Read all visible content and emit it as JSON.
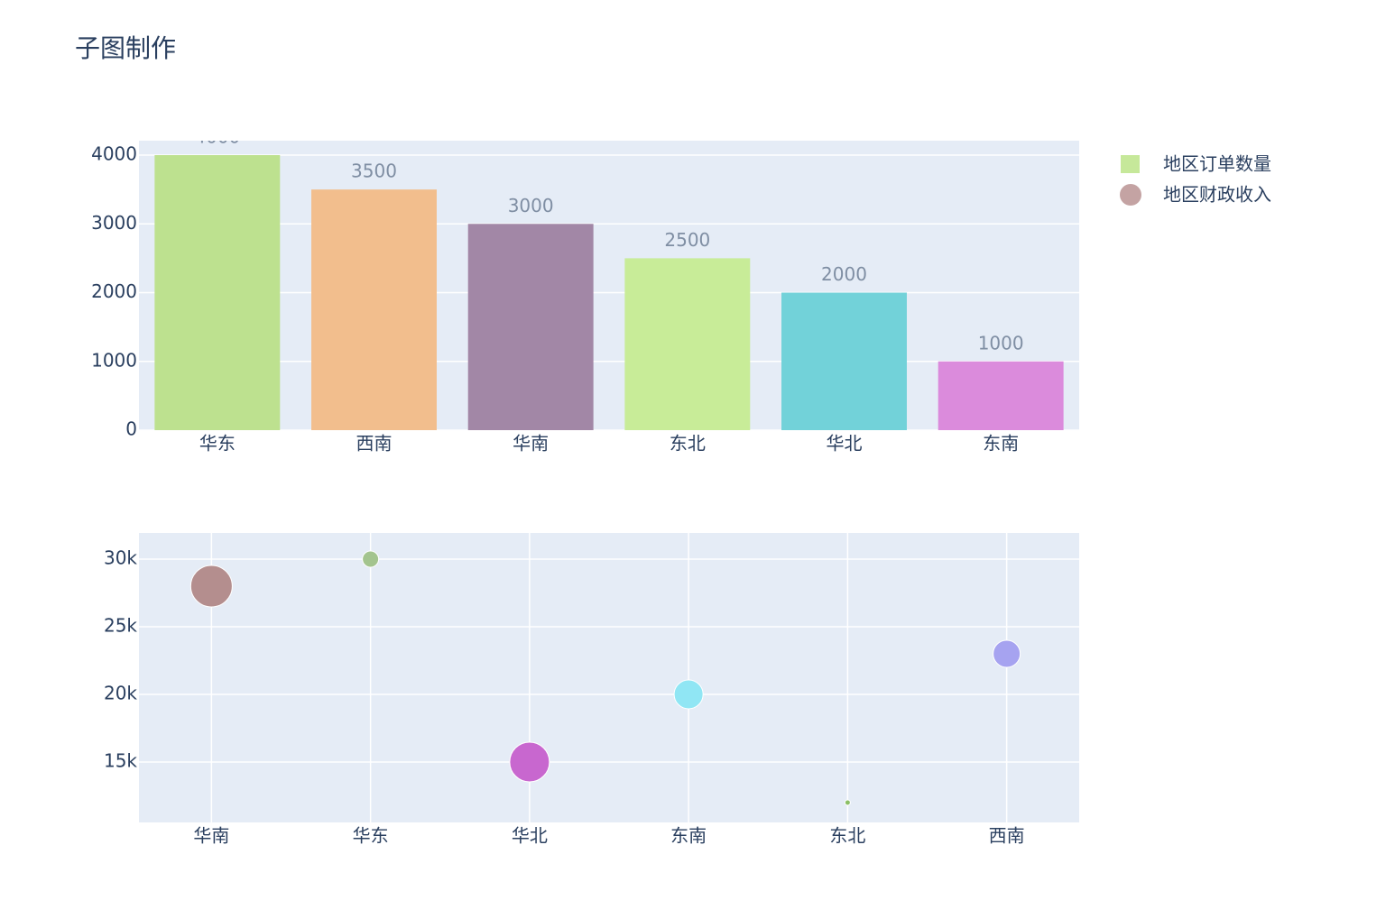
{
  "title": "子图制作",
  "chart_data": [
    {
      "type": "bar",
      "name": "地区订单数量",
      "legend_color": "#c6e89a",
      "categories": [
        "华东",
        "西南",
        "华南",
        "东北",
        "华北",
        "东南"
      ],
      "values": [
        4000,
        3500,
        3000,
        2500,
        2000,
        1000
      ],
      "colors": [
        "#bde18f",
        "#f2be8d",
        "#a287a6",
        "#c8ec98",
        "#72d2d9",
        "#db8bdc"
      ],
      "ylim": [
        0,
        4210
      ],
      "yticks": [
        0,
        1000,
        2000,
        3000,
        4000
      ],
      "grid": true,
      "xgrid": false
    },
    {
      "type": "scatter",
      "name": "地区财政收入",
      "legend_color": "#c4a3a3",
      "categories": [
        "华南",
        "华东",
        "华北",
        "东南",
        "东北",
        "西南"
      ],
      "values": [
        28000,
        30000,
        15000,
        20000,
        12000,
        23000
      ],
      "sizes": [
        46,
        18,
        44,
        32,
        6,
        30
      ],
      "colors": [
        "#b48e8e",
        "#a3c48e",
        "#c867cf",
        "#90e6f4",
        "#8cbf66",
        "#a6a3f0"
      ],
      "ylim": [
        10530,
        31930
      ],
      "yticks": [
        {
          "value": 15000,
          "label": "15k"
        },
        {
          "value": 20000,
          "label": "20k"
        },
        {
          "value": 25000,
          "label": "25k"
        },
        {
          "value": 30000,
          "label": "30k"
        }
      ],
      "grid": true,
      "xgrid": true
    }
  ]
}
